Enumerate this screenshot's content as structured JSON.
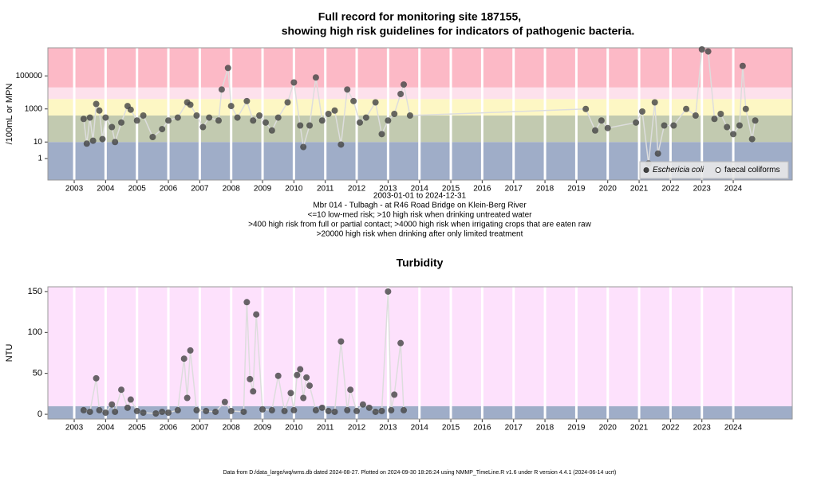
{
  "chart_data": [
    {
      "type": "scatter",
      "title": [
        "Full record for monitoring site 187155,",
        "showing high risk guidelines for indicators of pathogenic bacteria."
      ],
      "ylabel": "/100mL or MPN",
      "log": true,
      "xlim": [
        2002.16,
        2025.88
      ],
      "xticks": [
        2003,
        2004,
        2005,
        2006,
        2007,
        2008,
        2009,
        2010,
        2011,
        2012,
        2013,
        2014,
        2015,
        2016,
        2017,
        2018,
        2019,
        2020,
        2021,
        2022,
        2023,
        2024
      ],
      "ylim": [
        0.05,
        5000000
      ],
      "yticks": [
        1,
        10,
        1000,
        100000
      ],
      "guidelines": [
        10,
        400,
        4000,
        20000
      ],
      "band_colors": [
        "#9fadc8",
        "#c2cab0",
        "#fdf7c4",
        "#fde1ec",
        "#fcb9c6"
      ],
      "line_color": "#dddddd",
      "annotations": [
        "2003-01-01 to 2024-12-31",
        "Mbr 014 - Tulbagh - at R46 Road Bridge on Klein-Berg River",
        "<=10 low-med risk; >10 high risk when drinking untreated water",
        ">400 high risk from full or partial contact; >4000 high risk when irrigating crops that are eaten raw",
        ">20000 high risk when drinking after only limited treatment"
      ],
      "legend": "bottom-right",
      "series": [
        {
          "name": "Eschericia coli",
          "color": "#444444",
          "x": [
            2003.3,
            2003.4,
            2003.5,
            2003.6,
            2003.7,
            2003.8,
            2003.9,
            2004.0,
            2004.2,
            2004.3,
            2004.5,
            2004.7,
            2004.8,
            2005.0,
            2005.2,
            2005.5,
            2005.8,
            2006.0,
            2006.3,
            2006.6,
            2006.7,
            2006.9,
            2007.1,
            2007.3,
            2007.6,
            2007.7,
            2007.9,
            2008.0,
            2008.2,
            2008.5,
            2008.7,
            2008.9,
            2009.1,
            2009.3,
            2009.5,
            2009.8,
            2010.0,
            2010.2,
            2010.3,
            2010.5,
            2010.7,
            2010.9,
            2011.1,
            2011.3,
            2011.5,
            2011.7,
            2011.9,
            2012.1,
            2012.3,
            2012.6,
            2012.8,
            2013.0,
            2013.2,
            2013.4,
            2013.5,
            2013.7,
            2019.3,
            2019.6,
            2019.8,
            2020.0,
            2020.9,
            2021.1,
            2021.3,
            2021.5,
            2021.6,
            2021.8,
            2022.1,
            2022.5,
            2022.8,
            2023.0,
            2023.2,
            2023.4,
            2023.6,
            2023.8,
            2024.0,
            2024.2,
            2024.3,
            2024.4,
            2024.6,
            2024.7
          ],
          "values": [
            250,
            8,
            300,
            12,
            2000,
            800,
            15,
            300,
            80,
            10,
            150,
            1500,
            900,
            200,
            400,
            20,
            60,
            200,
            300,
            2500,
            1800,
            400,
            80,
            300,
            200,
            15000,
            300000,
            1500,
            300,
            3000,
            200,
            400,
            150,
            50,
            300,
            2500,
            40000,
            100,
            5,
            100,
            80000,
            200,
            500,
            800,
            7,
            15000,
            3000,
            150,
            300,
            2500,
            30,
            200,
            500,
            8000,
            30000,
            400,
            1000,
            50,
            200,
            70,
            150,
            700,
            0.5,
            2500,
            2,
            100,
            100,
            1000,
            400,
            4000000,
            3000000,
            250,
            500,
            80,
            30,
            100,
            400000,
            1000,
            15,
            200
          ]
        },
        {
          "name": "faecal coliforms",
          "color": "#ffffff",
          "x": [],
          "values": []
        }
      ]
    },
    {
      "type": "scatter",
      "title": "Turbidity",
      "ylabel": "NTU",
      "log": false,
      "xlim": [
        2002.16,
        2025.88
      ],
      "xticks": [
        2003,
        2004,
        2005,
        2006,
        2007,
        2008,
        2009,
        2010,
        2011,
        2012,
        2013,
        2014,
        2015,
        2016,
        2017,
        2018,
        2019,
        2020,
        2021,
        2022,
        2023,
        2024
      ],
      "ylim": [
        -5.8,
        155.8
      ],
      "yticks": [
        0,
        50,
        100,
        150
      ],
      "guidelines": [
        10
      ],
      "band_colors": [
        "#9fadc8",
        "#fde1fc"
      ],
      "line_color": "#dddddd",
      "footnote": "Data from D:/data_large/wq/wms.db dated 2024-08-27. Plotted on 2024-09-30 18:26:24 using NMMP_TimeLine.R v1.6 under R version 4.4.1 (2024-06-14 ucrt)",
      "series": [
        {
          "name": "Turbidity",
          "color": "#444444",
          "x": [
            2003.3,
            2003.5,
            2003.7,
            2003.8,
            2004.0,
            2004.2,
            2004.3,
            2004.5,
            2004.7,
            2004.8,
            2005.0,
            2005.2,
            2005.6,
            2005.8,
            2006.0,
            2006.3,
            2006.5,
            2006.6,
            2006.7,
            2006.9,
            2007.2,
            2007.5,
            2007.8,
            2008.0,
            2008.4,
            2008.5,
            2008.6,
            2008.7,
            2008.8,
            2009.0,
            2009.3,
            2009.5,
            2009.7,
            2009.9,
            2010.0,
            2010.1,
            2010.2,
            2010.3,
            2010.4,
            2010.5,
            2010.7,
            2010.9,
            2011.1,
            2011.3,
            2011.5,
            2011.7,
            2011.8,
            2012.0,
            2012.2,
            2012.4,
            2012.6,
            2012.8,
            2013.0,
            2013.1,
            2013.2,
            2013.4,
            2013.5
          ],
          "values": [
            5,
            3,
            44,
            5,
            2,
            12,
            3,
            30,
            8,
            18,
            4,
            2,
            1,
            3,
            2,
            5,
            68,
            20,
            78,
            5,
            4,
            3,
            15,
            4,
            3,
            137,
            43,
            28,
            122,
            6,
            5,
            47,
            4,
            26,
            5,
            48,
            55,
            20,
            45,
            35,
            5,
            8,
            4,
            3,
            89,
            5,
            30,
            4,
            12,
            8,
            3,
            4,
            150,
            5,
            24,
            87,
            5
          ]
        }
      ]
    }
  ]
}
